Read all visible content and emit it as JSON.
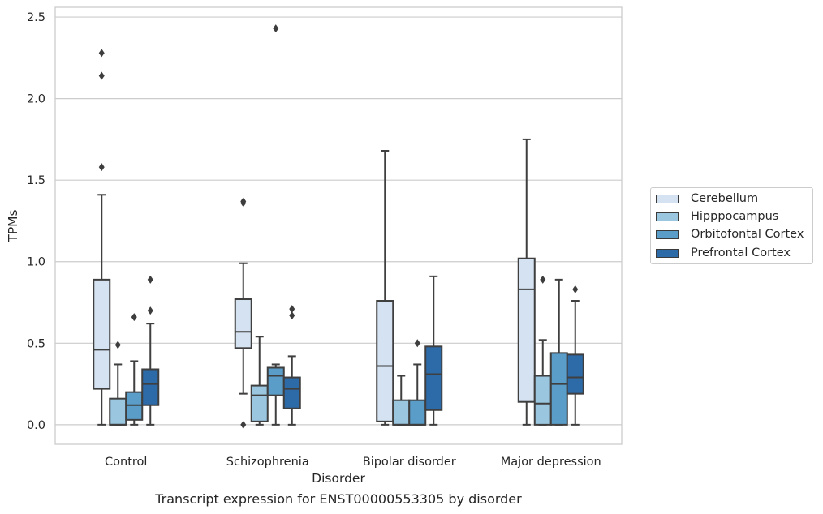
{
  "chart_data": {
    "type": "box",
    "xlabel": "Disorder",
    "ylabel": "TPMs",
    "caption": "Transcript expression for ENST00000553305 by disorder",
    "categories": [
      "Control",
      "Schizophrenia",
      "Bipolar disorder",
      "Major depression"
    ],
    "ylim": [
      -0.12,
      2.56
    ],
    "yticks": [
      0.0,
      0.5,
      1.0,
      1.5,
      2.0,
      2.5
    ],
    "ytick_labels": [
      "0.0",
      "0.5",
      "1.0",
      "1.5",
      "2.0",
      "2.5"
    ],
    "grid": "horizontal",
    "legend_position": "right",
    "series": [
      {
        "name": "Cerebellum",
        "color": "#d4e2f1",
        "boxes": [
          {
            "min": 0.0,
            "q1": 0.22,
            "median": 0.46,
            "q3": 0.89,
            "max": 1.41,
            "outliers": [
              1.58,
              2.14,
              2.28
            ]
          },
          {
            "min": 0.19,
            "q1": 0.47,
            "median": 0.57,
            "q3": 0.77,
            "max": 0.99,
            "outliers": [
              0.0,
              1.36,
              1.37
            ]
          },
          {
            "min": 0.0,
            "q1": 0.02,
            "median": 0.36,
            "q3": 0.76,
            "max": 1.68,
            "outliers": []
          },
          {
            "min": 0.0,
            "q1": 0.14,
            "median": 0.83,
            "q3": 1.02,
            "max": 1.75,
            "outliers": []
          }
        ]
      },
      {
        "name": "Hipppocampus",
        "color": "#9ac6df",
        "boxes": [
          {
            "min": 0.0,
            "q1": 0.0,
            "median": 0.0,
            "q3": 0.16,
            "max": 0.37,
            "outliers": [
              0.49
            ]
          },
          {
            "min": 0.0,
            "q1": 0.02,
            "median": 0.18,
            "q3": 0.24,
            "max": 0.54,
            "outliers": []
          },
          {
            "min": 0.0,
            "q1": 0.0,
            "median": 0.0,
            "q3": 0.15,
            "max": 0.3,
            "outliers": []
          },
          {
            "min": 0.0,
            "q1": 0.0,
            "median": 0.13,
            "q3": 0.3,
            "max": 0.52,
            "outliers": [
              0.89
            ]
          }
        ]
      },
      {
        "name": "Orbitofontal Cortex",
        "color": "#5a9dc9",
        "boxes": [
          {
            "min": 0.0,
            "q1": 0.03,
            "median": 0.12,
            "q3": 0.2,
            "max": 0.39,
            "outliers": [
              0.66
            ]
          },
          {
            "min": 0.0,
            "q1": 0.18,
            "median": 0.3,
            "q3": 0.35,
            "max": 0.37,
            "outliers": [
              2.43
            ]
          },
          {
            "min": 0.0,
            "q1": 0.0,
            "median": 0.0,
            "q3": 0.15,
            "max": 0.37,
            "outliers": [
              0.5
            ]
          },
          {
            "min": 0.0,
            "q1": 0.0,
            "median": 0.25,
            "q3": 0.44,
            "max": 0.89,
            "outliers": []
          }
        ]
      },
      {
        "name": "Prefrontal Cortex",
        "color": "#2d6aa8",
        "boxes": [
          {
            "min": 0.0,
            "q1": 0.12,
            "median": 0.25,
            "q3": 0.34,
            "max": 0.62,
            "outliers": [
              0.7,
              0.89
            ]
          },
          {
            "min": 0.0,
            "q1": 0.1,
            "median": 0.22,
            "q3": 0.29,
            "max": 0.42,
            "outliers": [
              0.67,
              0.71
            ]
          },
          {
            "min": 0.0,
            "q1": 0.09,
            "median": 0.31,
            "q3": 0.48,
            "max": 0.91,
            "outliers": []
          },
          {
            "min": 0.0,
            "q1": 0.19,
            "median": 0.29,
            "q3": 0.43,
            "max": 0.76,
            "outliers": [
              0.83
            ]
          }
        ]
      }
    ]
  }
}
